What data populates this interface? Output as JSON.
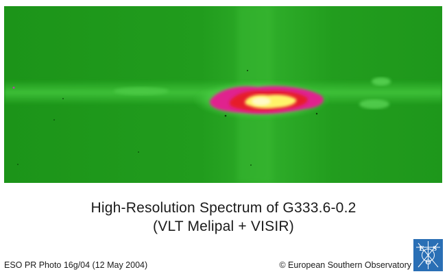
{
  "image": {
    "description_kind": "false-colour spectrum image",
    "colors": {
      "background": "#ffffff",
      "field_green": "#1f9a1c",
      "band_green": "#3fc23a",
      "core_magenta": "#e0208e",
      "core_red": "#e61a2b",
      "core_yellow": "#fff46a",
      "logo_blue": "#2a6fb5"
    }
  },
  "caption": {
    "title": "High-Resolution Spectrum of G333.6-0.2",
    "subtitle": "(VLT Melipal + VISIR)"
  },
  "footer": {
    "photo_id": "ESO PR Photo 16g/04 (12 May 2004)",
    "copyright": "© European Southern Observatory"
  },
  "logo": {
    "name": "ESO logo",
    "text": "ESO"
  }
}
